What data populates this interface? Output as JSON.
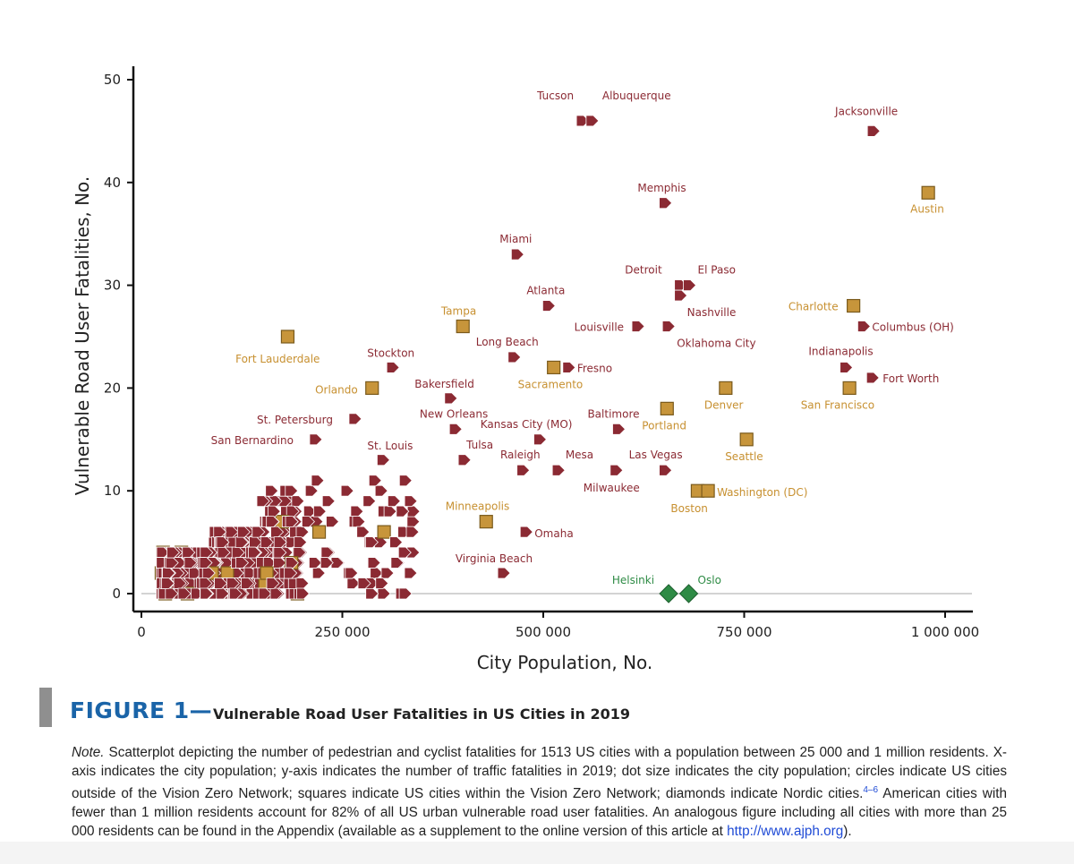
{
  "chart_data": {
    "type": "scatter",
    "xlabel": "City Population, No.",
    "ylabel": "Vulnerable Road User Fatalities, No.",
    "xlim": [
      0,
      1000000
    ],
    "ylim": [
      0,
      50
    ],
    "xticks": [
      0,
      250000,
      500000,
      750000,
      1000000
    ],
    "xtick_labels": [
      "0",
      "250 000",
      "500 000",
      "750 000",
      "1 000 000"
    ],
    "yticks": [
      0,
      10,
      20,
      30,
      40,
      50
    ],
    "ytick_labels": [
      "0",
      "10",
      "20",
      "30",
      "40",
      "50"
    ],
    "grid": false,
    "colors": {
      "non_network": "#8b2a33",
      "vision_zero": "#c7953b",
      "nordic": "#2e8b45",
      "vz_label": "#c79030",
      "nordic_label": "#2e8b45"
    },
    "labeled_points": [
      {
        "name": "Tucson",
        "x": 548000,
        "y": 46,
        "group": "non_network"
      },
      {
        "name": "Albuquerque",
        "x": 560000,
        "y": 46,
        "group": "non_network"
      },
      {
        "name": "Jacksonville",
        "x": 910000,
        "y": 45,
        "group": "non_network"
      },
      {
        "name": "Austin",
        "x": 979000,
        "y": 39,
        "group": "vision_zero"
      },
      {
        "name": "Memphis",
        "x": 651000,
        "y": 38,
        "group": "non_network"
      },
      {
        "name": "Miami",
        "x": 467000,
        "y": 33,
        "group": "non_network"
      },
      {
        "name": "Detroit",
        "x": 670000,
        "y": 30,
        "group": "non_network"
      },
      {
        "name": "El Paso",
        "x": 681000,
        "y": 30,
        "group": "non_network"
      },
      {
        "name": "Nashville",
        "x": 670000,
        "y": 29,
        "group": "non_network"
      },
      {
        "name": "Atlanta",
        "x": 506000,
        "y": 28,
        "group": "non_network"
      },
      {
        "name": "Charlotte",
        "x": 886000,
        "y": 28,
        "group": "vision_zero"
      },
      {
        "name": "Tampa",
        "x": 400000,
        "y": 26,
        "group": "vision_zero"
      },
      {
        "name": "Louisville",
        "x": 617000,
        "y": 26,
        "group": "non_network"
      },
      {
        "name": "Oklahoma City",
        "x": 655000,
        "y": 26,
        "group": "non_network"
      },
      {
        "name": "Columbus (OH)",
        "x": 898000,
        "y": 26,
        "group": "non_network"
      },
      {
        "name": "Fort Lauderdale",
        "x": 182000,
        "y": 25,
        "group": "vision_zero"
      },
      {
        "name": "Long Beach",
        "x": 463000,
        "y": 23,
        "group": "non_network"
      },
      {
        "name": "Stockton",
        "x": 312000,
        "y": 22,
        "group": "non_network"
      },
      {
        "name": "Sacramento",
        "x": 513000,
        "y": 22,
        "group": "vision_zero"
      },
      {
        "name": "Fresno",
        "x": 531000,
        "y": 22,
        "group": "non_network"
      },
      {
        "name": "Indianapolis",
        "x": 876000,
        "y": 22,
        "group": "non_network"
      },
      {
        "name": "Fort Worth",
        "x": 909000,
        "y": 21,
        "group": "non_network"
      },
      {
        "name": "Orlando",
        "x": 287000,
        "y": 20,
        "group": "vision_zero"
      },
      {
        "name": "Denver",
        "x": 727000,
        "y": 20,
        "group": "vision_zero"
      },
      {
        "name": "San Francisco",
        "x": 881000,
        "y": 20,
        "group": "vision_zero"
      },
      {
        "name": "Bakersfield",
        "x": 384000,
        "y": 19,
        "group": "non_network"
      },
      {
        "name": "Portland",
        "x": 654000,
        "y": 18,
        "group": "vision_zero"
      },
      {
        "name": "St. Petersburg",
        "x": 265000,
        "y": 17,
        "group": "non_network"
      },
      {
        "name": "New Orleans",
        "x": 390000,
        "y": 16,
        "group": "non_network"
      },
      {
        "name": "Baltimore",
        "x": 593000,
        "y": 16,
        "group": "non_network"
      },
      {
        "name": "San Bernardino",
        "x": 216000,
        "y": 15,
        "group": "non_network"
      },
      {
        "name": "Kansas City (MO)",
        "x": 495000,
        "y": 15,
        "group": "non_network"
      },
      {
        "name": "Seattle",
        "x": 753000,
        "y": 15,
        "group": "vision_zero"
      },
      {
        "name": "St. Louis",
        "x": 300000,
        "y": 13,
        "group": "non_network"
      },
      {
        "name": "Tulsa",
        "x": 401000,
        "y": 13,
        "group": "non_network"
      },
      {
        "name": "Raleigh",
        "x": 474000,
        "y": 12,
        "group": "non_network"
      },
      {
        "name": "Mesa",
        "x": 518000,
        "y": 12,
        "group": "non_network"
      },
      {
        "name": "Las Vegas",
        "x": 651000,
        "y": 12,
        "group": "non_network"
      },
      {
        "name": "Milwaukee",
        "x": 590000,
        "y": 12,
        "group": "non_network"
      },
      {
        "name": "Boston",
        "x": 692000,
        "y": 10,
        "group": "vision_zero"
      },
      {
        "name": "Washington (DC)",
        "x": 705000,
        "y": 10,
        "group": "vision_zero"
      },
      {
        "name": "Minneapolis",
        "x": 429000,
        "y": 7,
        "group": "vision_zero"
      },
      {
        "name": "Omaha",
        "x": 478000,
        "y": 6,
        "group": "non_network"
      },
      {
        "name": "Virginia Beach",
        "x": 450000,
        "y": 2,
        "group": "non_network"
      },
      {
        "name": "Helsinki",
        "x": 656000,
        "y": 0,
        "group": "nordic"
      },
      {
        "name": "Oslo",
        "x": 681000,
        "y": 0,
        "group": "nordic"
      }
    ]
  },
  "figure": {
    "number": "FIGURE 1—",
    "title": "Vulnerable Road User Fatalities in US Cities in 2019"
  },
  "note": {
    "lead": "Note.",
    "text1": " Scatterplot depicting the number of pedestrian and cyclist fatalities for 1513 US cities with a population between 25 000 and 1 million residents. X-axis indicates the city population; y-axis indicates  the number of traffic fatalities in 2019; dot size indicates the city population; circles indicate US cities outside of the Vision Zero Network; squares indicate US cities within the Vision Zero Network; diamonds indicate Nordic cities.",
    "ref": "4–6",
    "text2": " American cities with fewer than 1 million residents account for 82% of all US urban vulnerable road user fatalities. An analogous figure including all cities with more than 25 000 residents can be found in the Appendix (available as a supplement to the online version of this article at ",
    "link": "http://www.ajph.org",
    "text3": ")."
  }
}
